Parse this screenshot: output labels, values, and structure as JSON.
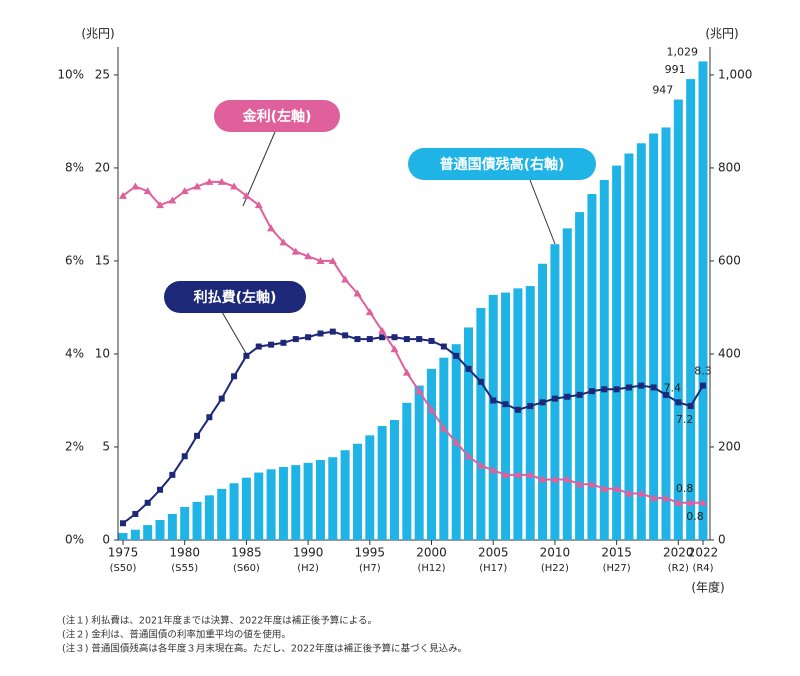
{
  "chart_data": {
    "type": "bar-line",
    "y_unit_left": "(兆円)",
    "y_unit_right": "(兆円)",
    "x_unit": "(年度)",
    "x": [
      1975,
      1976,
      1977,
      1978,
      1979,
      1980,
      1981,
      1982,
      1983,
      1984,
      1985,
      1986,
      1987,
      1988,
      1989,
      1990,
      1991,
      1992,
      1993,
      1994,
      1995,
      1996,
      1997,
      1998,
      1999,
      2000,
      2001,
      2002,
      2003,
      2004,
      2005,
      2006,
      2007,
      2008,
      2009,
      2010,
      2011,
      2012,
      2013,
      2014,
      2015,
      2016,
      2017,
      2018,
      2019,
      2020,
      2021,
      2022
    ],
    "xlim": [
      1975,
      2022
    ],
    "xticks": [
      1975,
      1980,
      1985,
      1990,
      1995,
      2000,
      2005,
      2010,
      2015,
      2020,
      2022
    ],
    "xtick_sublabels": [
      "(S50)",
      "(S55)",
      "(S60)",
      "(H2)",
      "(H7)",
      "(H12)",
      "(H17)",
      "(H22)",
      "(H27)",
      "(R2)",
      "(R4)"
    ],
    "ylim": [
      0,
      26.5
    ],
    "yticks": [
      0,
      5,
      10,
      15,
      20,
      25
    ],
    "y2lim": [
      0,
      1060
    ],
    "y2ticks": [
      0,
      200,
      400,
      600,
      800,
      {
        "value": 1000,
        "label": "1,000"
      }
    ],
    "y3lim": [
      0,
      10.6
    ],
    "y3ticks": [
      {
        "value": 0,
        "label": "0%"
      },
      {
        "value": 2,
        "label": "2%"
      },
      {
        "value": 4,
        "label": "4%"
      },
      {
        "value": 6,
        "label": "6%"
      },
      {
        "value": 8,
        "label": "8%"
      },
      {
        "value": 10,
        "label": "10%"
      }
    ],
    "series": [
      {
        "name": "普通国債残高(右軸)",
        "type": "bar",
        "axis": "y2",
        "color": "#1fb3e6",
        "values": [
          15,
          22,
          32,
          43,
          56,
          71,
          82,
          96,
          110,
          122,
          134,
          145,
          152,
          157,
          161,
          166,
          172,
          178,
          193,
          207,
          225,
          245,
          258,
          295,
          332,
          368,
          392,
          421,
          457,
          499,
          527,
          532,
          541,
          546,
          594,
          636,
          670,
          705,
          744,
          774,
          805,
          831,
          853,
          874,
          887,
          947,
          991,
          1029
        ],
        "value_labels": [
          null,
          null,
          null,
          null,
          null,
          null,
          null,
          null,
          null,
          null,
          null,
          null,
          null,
          null,
          null,
          null,
          null,
          null,
          null,
          null,
          null,
          null,
          null,
          null,
          null,
          null,
          null,
          null,
          null,
          null,
          null,
          null,
          null,
          null,
          null,
          null,
          null,
          null,
          null,
          null,
          null,
          null,
          null,
          null,
          null,
          "947",
          "991",
          "1,029"
        ]
      },
      {
        "name": "利払費(左軸)",
        "type": "line",
        "axis": "y",
        "color": "#1d2878",
        "marker": "square",
        "values": [
          0.9,
          1.4,
          2.0,
          2.7,
          3.5,
          4.5,
          5.6,
          6.6,
          7.6,
          8.8,
          9.9,
          10.4,
          10.5,
          10.6,
          10.8,
          10.9,
          11.1,
          11.2,
          11.0,
          10.8,
          10.8,
          10.9,
          10.9,
          10.8,
          10.8,
          10.7,
          10.4,
          9.9,
          9.2,
          8.5,
          7.5,
          7.3,
          7.0,
          7.2,
          7.4,
          7.6,
          7.7,
          7.8,
          8.0,
          8.1,
          8.1,
          8.2,
          8.3,
          8.2,
          7.8,
          7.4,
          7.2,
          8.3
        ],
        "value_labels": [
          null,
          null,
          null,
          null,
          null,
          null,
          null,
          null,
          null,
          null,
          null,
          null,
          null,
          null,
          null,
          null,
          null,
          null,
          null,
          null,
          null,
          null,
          null,
          null,
          null,
          null,
          null,
          null,
          null,
          null,
          null,
          null,
          null,
          null,
          null,
          null,
          null,
          null,
          null,
          null,
          null,
          null,
          null,
          null,
          null,
          "7.4",
          "7.2",
          "8.3"
        ]
      },
      {
        "name": "金利(左軸)",
        "type": "line",
        "axis": "y3",
        "color": "#e0609c",
        "marker": "triangle",
        "values": [
          7.4,
          7.6,
          7.5,
          7.2,
          7.3,
          7.5,
          7.6,
          7.7,
          7.7,
          7.6,
          7.4,
          7.2,
          6.7,
          6.4,
          6.2,
          6.1,
          6.0,
          6.0,
          5.6,
          5.3,
          4.9,
          4.5,
          4.1,
          3.6,
          3.2,
          2.8,
          2.4,
          2.1,
          1.8,
          1.6,
          1.5,
          1.4,
          1.4,
          1.4,
          1.3,
          1.3,
          1.3,
          1.2,
          1.2,
          1.1,
          1.1,
          1.0,
          1.0,
          0.9,
          0.9,
          0.8,
          0.8,
          0.8
        ],
        "value_labels": [
          null,
          null,
          null,
          null,
          null,
          null,
          null,
          null,
          null,
          null,
          null,
          null,
          null,
          null,
          null,
          null,
          null,
          null,
          null,
          null,
          null,
          null,
          null,
          null,
          null,
          null,
          null,
          null,
          null,
          null,
          null,
          null,
          null,
          null,
          null,
          null,
          null,
          null,
          null,
          null,
          null,
          null,
          null,
          null,
          null,
          null,
          "0.8",
          "0.8"
        ]
      }
    ],
    "notes": [
      "(注１) 利払費は、2021年度までは決算、2022年度は補正後予算による。",
      "(注２) 金利は、普通国債の利率加重平均の値を使用。",
      "(注３) 普通国債残高は各年度３月末現在高。ただし、2022年度は補正後予算に基づく見込み。"
    ]
  }
}
